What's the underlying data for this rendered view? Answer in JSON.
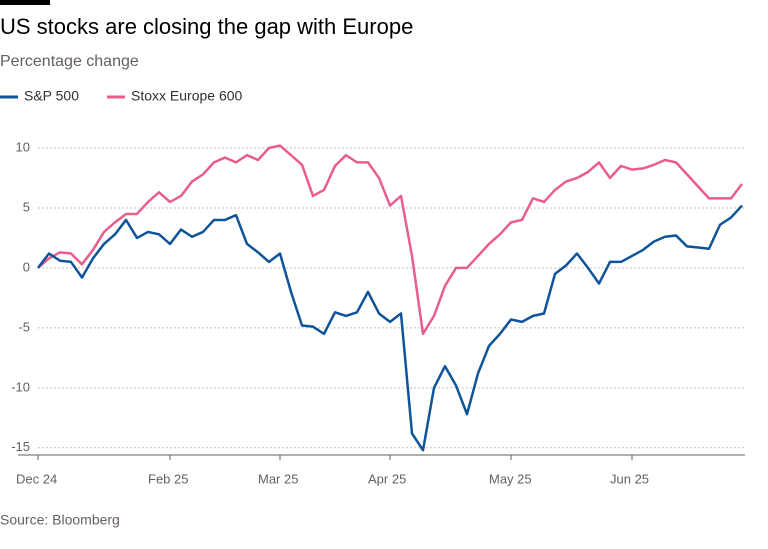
{
  "chart_data": {
    "type": "line",
    "title": "US stocks are closing the gap with Europe",
    "subtitle": "Percentage change",
    "source": "Source: Bloomberg",
    "categories": [
      "Dec 24",
      null,
      null,
      null,
      null,
      null,
      null,
      null,
      null,
      null,
      null,
      null,
      "Feb 25",
      null,
      null,
      null,
      null,
      null,
      null,
      null,
      null,
      null,
      "Mar 25",
      null,
      null,
      null,
      null,
      null,
      null,
      null,
      null,
      null,
      "Apr 25",
      null,
      null,
      null,
      null,
      null,
      null,
      null,
      null,
      null,
      null,
      "May 25",
      null,
      null,
      null,
      null,
      null,
      null,
      null,
      null,
      null,
      null,
      "Jun 25",
      null,
      null,
      null,
      null,
      null,
      null,
      null,
      null,
      null,
      null
    ],
    "series": [
      {
        "name": "S&P 500",
        "color": "#0f5499",
        "values": [
          0,
          1.2,
          0.6,
          0.5,
          -0.8,
          0.8,
          2.0,
          2.8,
          4.0,
          2.5,
          3.0,
          2.8,
          2.0,
          3.2,
          2.6,
          3.0,
          4.0,
          4.0,
          4.4,
          2.0,
          1.3,
          0.5,
          1.2,
          -2.0,
          -4.8,
          -4.9,
          -5.5,
          -3.7,
          -4.0,
          -3.7,
          -2.0,
          -3.8,
          -4.5,
          -3.8,
          -13.8,
          -15.2,
          -10.0,
          -8.2,
          -9.8,
          -12.2,
          -8.8,
          -6.5,
          -5.5,
          -4.3,
          -4.5,
          -4.0,
          -3.8,
          -0.5,
          0.2,
          1.2,
          0.0,
          -1.3,
          0.5,
          0.5,
          1.0,
          1.5,
          2.2,
          2.6,
          2.7,
          1.8,
          1.7,
          1.6,
          3.6,
          4.2,
          5.2
        ]
      },
      {
        "name": "Stoxx Europe 600",
        "color": "#e95d8c",
        "values": [
          0,
          0.8,
          1.3,
          1.2,
          0.3,
          1.5,
          3.0,
          3.8,
          4.5,
          4.5,
          5.5,
          6.3,
          5.5,
          6.0,
          7.2,
          7.8,
          8.8,
          9.2,
          8.8,
          9.4,
          9.0,
          10.0,
          10.2,
          9.4,
          8.6,
          6.0,
          6.5,
          8.5,
          9.4,
          8.8,
          8.8,
          7.5,
          5.2,
          6.0,
          1.0,
          -5.5,
          -4.0,
          -1.5,
          0.0,
          0.0,
          1.0,
          2.0,
          2.8,
          3.8,
          4.0,
          5.8,
          5.5,
          6.5,
          7.2,
          7.5,
          8.0,
          8.8,
          7.5,
          8.5,
          8.2,
          8.3,
          8.6,
          9.0,
          8.8,
          7.8,
          6.8,
          5.8,
          5.8,
          5.8,
          7.0
        ]
      }
    ],
    "ylim": [
      -15.6,
      11.5
    ],
    "yticks": [
      10,
      5,
      0,
      -5,
      -10,
      -15
    ],
    "grid": true
  }
}
